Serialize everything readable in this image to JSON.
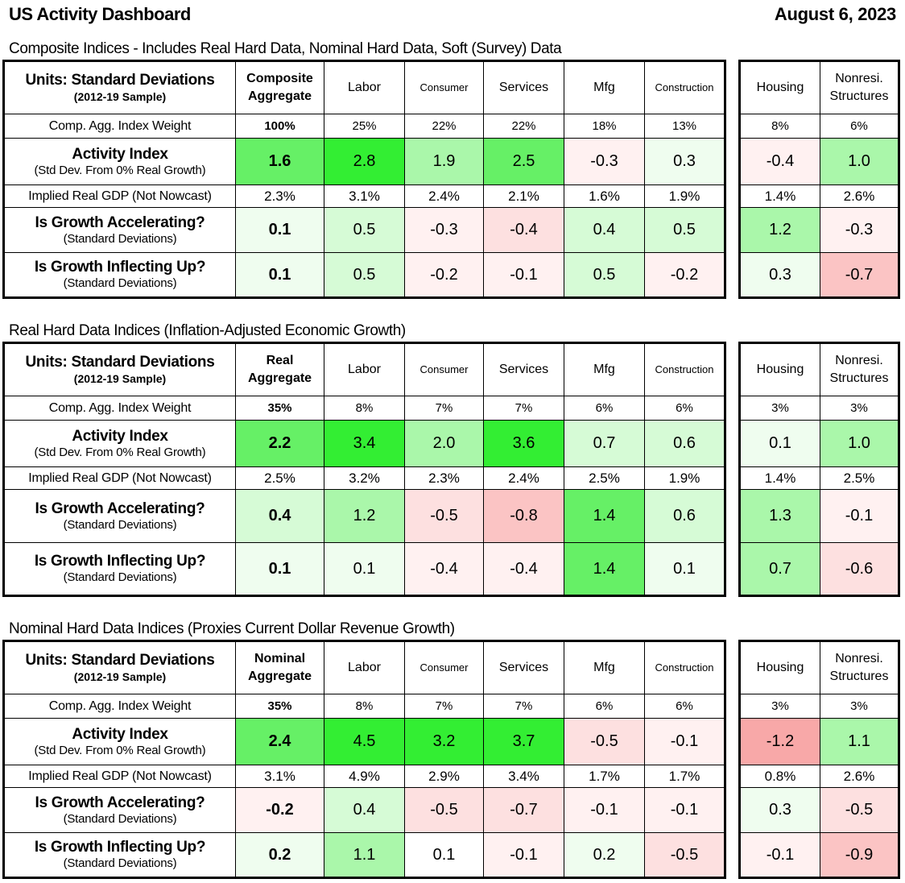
{
  "header": {
    "title": "US Activity Dashboard",
    "date": "August 6, 2023"
  },
  "row_labels": {
    "units_main": "Units: Standard Deviations",
    "units_sub": "(2012-19 Sample)",
    "weight": "Comp. Agg. Index Weight",
    "activity_main": "Activity Index",
    "activity_sub": "(Std Dev. From 0% Real Growth)",
    "gdp": "Implied Real GDP (Not Nowcast)",
    "accel_main": "Is Growth Accelerating?",
    "accel_sub": "(Standard Deviations)",
    "inflect_main": "Is Growth Inflecting Up?",
    "inflect_sub": "(Standard Deviations)"
  },
  "columns": {
    "labor": "Labor",
    "consumer": "Consumer",
    "services": "Services",
    "mfg": "Mfg",
    "construction": "Construction",
    "housing": "Housing",
    "nonres_1": "Nonresi.",
    "nonres_2": "Structures"
  },
  "colors": {
    "strong_green": "#33ee33",
    "green": "#66f066",
    "light_green": "#aaf7aa",
    "pale_green": "#d6fbd6",
    "faint_green": "#effdef",
    "faint_red": "#fff1f1",
    "pale_red": "#fde0e0",
    "red": "#fbc4c4",
    "strong_red": "#f8a8a8",
    "white": "#ffffff"
  },
  "sections": [
    {
      "title": "Composite Indices - Includes Real Hard Data, Nominal Hard Data, Soft (Survey) Data",
      "agg_1": "Composite",
      "agg_2": "Aggregate",
      "weights": [
        "100%",
        "25%",
        "22%",
        "22%",
        "18%",
        "13%",
        "8%",
        "6%"
      ],
      "activity": [
        "1.6",
        "2.8",
        "1.9",
        "2.5",
        "-0.3",
        "0.3",
        "-0.4",
        "1.0"
      ],
      "activity_colors": [
        "green",
        "strong_green",
        "light_green",
        "green",
        "faint_red",
        "faint_green",
        "faint_red",
        "light_green"
      ],
      "gdp": [
        "2.3%",
        "3.1%",
        "2.4%",
        "2.1%",
        "1.6%",
        "1.9%",
        "1.4%",
        "2.6%"
      ],
      "accel": [
        "0.1",
        "0.5",
        "-0.3",
        "-0.4",
        "0.4",
        "0.5",
        "1.2",
        "-0.3"
      ],
      "accel_colors": [
        "faint_green",
        "pale_green",
        "faint_red",
        "pale_red",
        "pale_green",
        "pale_green",
        "light_green",
        "faint_red"
      ],
      "inflect": [
        "0.1",
        "0.5",
        "-0.2",
        "-0.1",
        "0.5",
        "-0.2",
        "0.3",
        "-0.7"
      ],
      "inflect_colors": [
        "faint_green",
        "pale_green",
        "faint_red",
        "faint_red",
        "pale_green",
        "faint_red",
        "faint_green",
        "red"
      ]
    },
    {
      "title": "Real Hard Data Indices (Inflation-Adjusted Economic Growth)",
      "agg_1": "Real",
      "agg_2": "Aggregate",
      "weights": [
        "35%",
        "8%",
        "7%",
        "7%",
        "6%",
        "6%",
        "3%",
        "3%"
      ],
      "activity": [
        "2.2",
        "3.4",
        "2.0",
        "3.6",
        "0.7",
        "0.6",
        "0.1",
        "1.0"
      ],
      "activity_colors": [
        "green",
        "strong_green",
        "light_green",
        "strong_green",
        "pale_green",
        "pale_green",
        "faint_green",
        "light_green"
      ],
      "gdp": [
        "2.5%",
        "3.2%",
        "2.3%",
        "2.4%",
        "2.5%",
        "1.9%",
        "1.4%",
        "2.5%"
      ],
      "accel": [
        "0.4",
        "1.2",
        "-0.5",
        "-0.8",
        "1.4",
        "0.6",
        "1.3",
        "-0.1"
      ],
      "accel_colors": [
        "pale_green",
        "light_green",
        "pale_red",
        "red",
        "green",
        "pale_green",
        "light_green",
        "faint_red"
      ],
      "inflect": [
        "0.1",
        "0.1",
        "-0.4",
        "-0.4",
        "1.4",
        "0.1",
        "0.7",
        "-0.6"
      ],
      "inflect_colors": [
        "faint_green",
        "faint_green",
        "faint_red",
        "faint_red",
        "green",
        "faint_green",
        "light_green",
        "pale_red"
      ]
    },
    {
      "title": "Nominal Hard Data Indices (Proxies Current Dollar Revenue Growth)",
      "agg_1": "Nominal",
      "agg_2": "Aggregate",
      "weights": [
        "35%",
        "8%",
        "7%",
        "7%",
        "6%",
        "6%",
        "3%",
        "3%"
      ],
      "activity": [
        "2.4",
        "4.5",
        "3.2",
        "3.7",
        "-0.5",
        "-0.1",
        "-1.2",
        "1.1"
      ],
      "activity_colors": [
        "green",
        "strong_green",
        "strong_green",
        "strong_green",
        "pale_red",
        "faint_red",
        "strong_red",
        "light_green"
      ],
      "gdp": [
        "3.1%",
        "4.9%",
        "2.9%",
        "3.4%",
        "1.7%",
        "1.7%",
        "0.8%",
        "2.6%"
      ],
      "accel": [
        "-0.2",
        "0.4",
        "-0.5",
        "-0.7",
        "-0.1",
        "-0.1",
        "0.3",
        "-0.5"
      ],
      "accel_colors": [
        "faint_red",
        "pale_green",
        "pale_red",
        "pale_red",
        "faint_red",
        "faint_red",
        "faint_green",
        "pale_red"
      ],
      "inflect": [
        "0.2",
        "1.1",
        "0.1",
        "-0.1",
        "0.2",
        "-0.5",
        "-0.1",
        "-0.9"
      ],
      "inflect_colors": [
        "faint_green",
        "light_green",
        "white",
        "faint_red",
        "faint_green",
        "pale_red",
        "faint_red",
        "red"
      ]
    }
  ]
}
